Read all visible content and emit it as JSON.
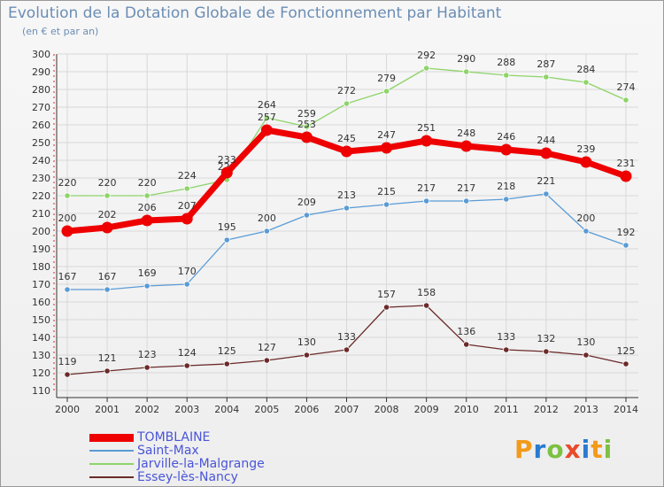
{
  "chart_data": {
    "type": "line",
    "title": "Evolution de la Dotation Globale de Fonctionnement par Habitant",
    "subtitle": "(en € et par an)",
    "x": [
      "2000",
      "2001",
      "2002",
      "2003",
      "2004",
      "2005",
      "2006",
      "2007",
      "2008",
      "2009",
      "2010",
      "2011",
      "2012",
      "2013",
      "2014"
    ],
    "ylim": [
      110,
      300
    ],
    "yticks": [
      110,
      120,
      130,
      140,
      150,
      160,
      170,
      180,
      190,
      200,
      210,
      220,
      230,
      240,
      250,
      260,
      270,
      280,
      290,
      300
    ],
    "legend_position": "bottom-left",
    "series": [
      {
        "name": "Essey-lès-Nancy",
        "color": "#6b2a2a",
        "values": [
          119,
          121,
          123,
          124,
          125,
          127,
          130,
          133,
          157,
          158,
          136,
          133,
          132,
          130,
          125
        ]
      },
      {
        "name": "Saint-Max",
        "color": "#5a9bd5",
        "values": [
          167,
          167,
          169,
          170,
          195,
          200,
          209,
          213,
          215,
          217,
          217,
          218,
          221,
          200,
          192
        ]
      },
      {
        "name": "Jarville-la-Malgrange",
        "color": "#8ed46a",
        "values": [
          220,
          220,
          220,
          224,
          229,
          264,
          259,
          272,
          279,
          292,
          290,
          288,
          287,
          284,
          274
        ]
      },
      {
        "name": "TOMBLAINE",
        "color": "#ee0000",
        "values": [
          200,
          202,
          206,
          207,
          233,
          257,
          253,
          245,
          247,
          251,
          248,
          246,
          244,
          239,
          231
        ]
      }
    ]
  },
  "brand": {
    "name": "Proxiti"
  }
}
